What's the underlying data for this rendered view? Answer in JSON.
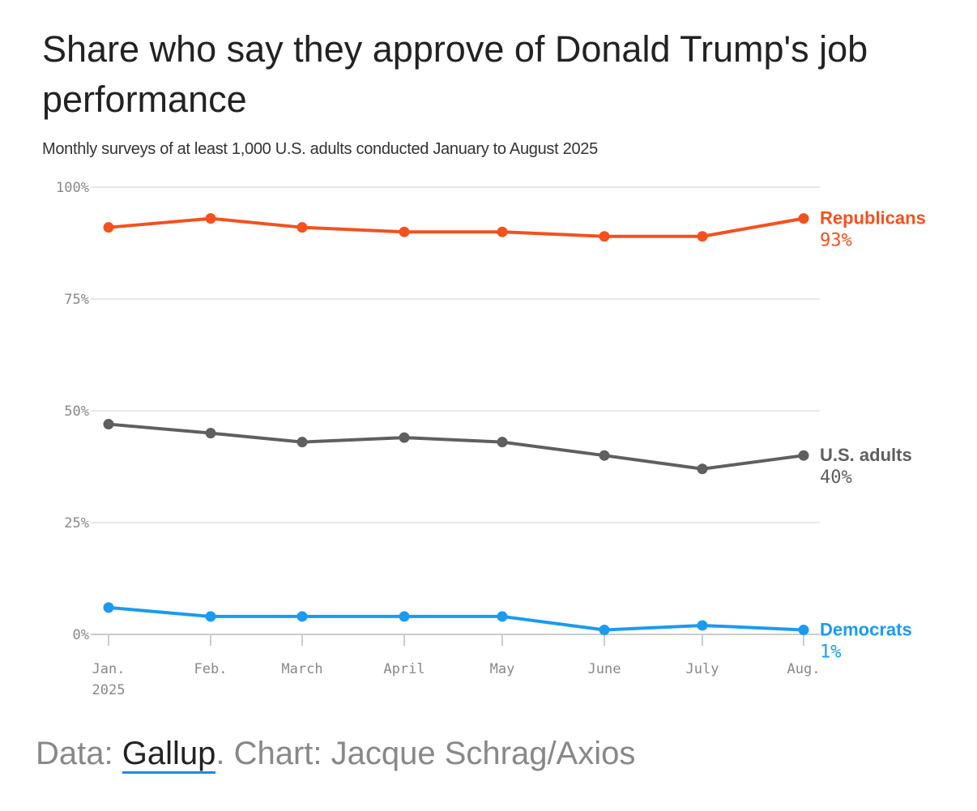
{
  "title": "Share who say they approve of Donald Trump's job performance",
  "subtitle": "Monthly surveys of at least 1,000 U.S. adults conducted January to August 2025",
  "footer": {
    "data_label": "Data: ",
    "source": "Gallup",
    "rest": ". Chart: Jacque Schrag/Axios"
  },
  "chart_data": {
    "type": "line",
    "title": "Share who say they approve of Donald Trump's job performance",
    "categories": [
      "Jan.",
      "Feb.",
      "March",
      "April",
      "May",
      "June",
      "July",
      "Aug."
    ],
    "first_category_sub": "2025",
    "ylim": [
      0,
      100
    ],
    "yticks": [
      "0%",
      "25%",
      "50%",
      "75%",
      "100%"
    ],
    "ytick_values": [
      0,
      25,
      50,
      75,
      100
    ],
    "grid": true,
    "series": [
      {
        "name": "Republicans",
        "end_label": "93%",
        "color": "#f4511e",
        "values": [
          91,
          93,
          91,
          90,
          90,
          89,
          89,
          93
        ]
      },
      {
        "name": "U.S. adults",
        "end_label": "40%",
        "color": "#5f5f5f",
        "values": [
          47,
          45,
          43,
          44,
          43,
          40,
          37,
          40
        ]
      },
      {
        "name": "Democrats",
        "end_label": "1%",
        "color": "#1a9bf0",
        "values": [
          6,
          4,
          4,
          4,
          4,
          1,
          2,
          1
        ]
      }
    ]
  }
}
